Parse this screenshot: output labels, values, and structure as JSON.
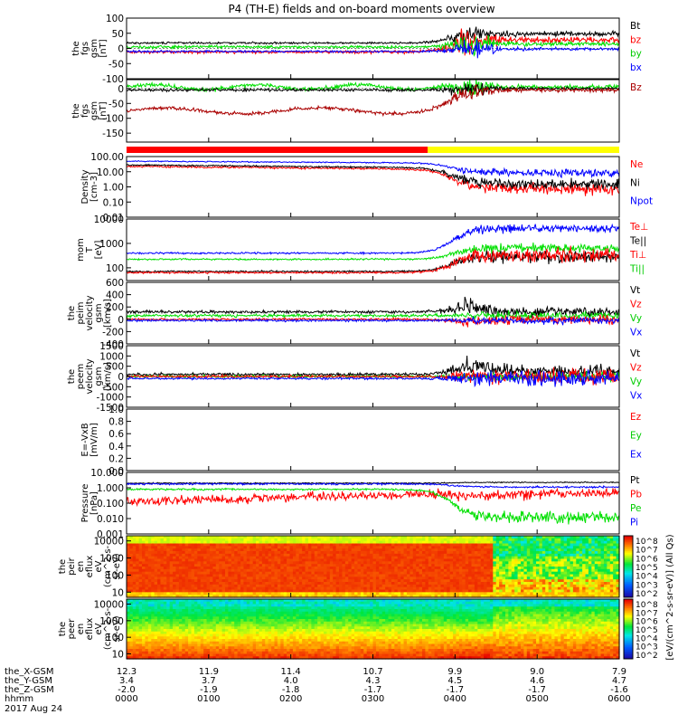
{
  "title": "P4 (TH-E) fields and on-board moments overview",
  "footer": {
    "rows": [
      {
        "label": "the_X-GSM",
        "values": [
          "12.3",
          "11.9",
          "11.4",
          "10.7",
          "9.9",
          "9.0",
          "7.9"
        ]
      },
      {
        "label": "the_Y-GSM",
        "values": [
          "3.4",
          "3.7",
          "4.0",
          "4.3",
          "4.5",
          "4.6",
          "4.7"
        ]
      },
      {
        "label": "the_Z-GSM",
        "values": [
          "-2.0",
          "-1.9",
          "-1.8",
          "-1.7",
          "-1.7",
          "-1.7",
          "-1.6"
        ]
      },
      {
        "label": "hhmm",
        "values": [
          "0000",
          "0100",
          "0200",
          "0300",
          "0400",
          "0500",
          "0600"
        ]
      }
    ],
    "date": "2017 Aug 24"
  },
  "colorbar": {
    "label": "[eV/(cm^2-s-sr-eV)] (All Qs)",
    "ticks_top": [
      "10^8",
      "10^7",
      "10^6",
      "10^5",
      "10^4",
      "10^3",
      "10^2"
    ],
    "ticks_bottom": [
      "10^8",
      "10^7",
      "10^6",
      "10^5",
      "10^4",
      "10^3",
      "10^2"
    ]
  },
  "colors": {
    "black": "#000000",
    "red": "#ff0000",
    "green": "#00e000",
    "blue": "#0000ff",
    "darkred": "#aa0000",
    "yellow": "#ffff00"
  },
  "chart_data": [
    {
      "type": "line",
      "id": "fgs",
      "ylabel": [
        "the",
        "fgs",
        "gsm",
        "[nT]"
      ],
      "ylim": [
        -100,
        100
      ],
      "ticks": [
        "100",
        "50",
        "0",
        "-50",
        "-100"
      ],
      "legend": [
        {
          "text": "Bt",
          "color": "#000000"
        },
        {
          "text": "bz",
          "color": "#ff0000"
        },
        {
          "text": "by",
          "color": "#00cc00"
        },
        {
          "text": "bx",
          "color": "#0000ff"
        }
      ]
    },
    {
      "type": "line",
      "id": "fgs-angles",
      "ylabel": [
        "the",
        "fgs",
        "gsm",
        "[nT]"
      ],
      "ylim": [
        -180,
        30
      ],
      "ticks": [
        "0",
        "-50",
        "-100",
        "-150"
      ],
      "legend": [
        {
          "text": "Bz",
          "color": "#aa0000"
        }
      ]
    },
    {
      "type": "bar",
      "id": "mode-bar",
      "segments": [
        {
          "from": "0000",
          "to": "0340",
          "color": "#ff0000"
        },
        {
          "from": "0340",
          "to": "0600",
          "color": "#ffff00"
        }
      ]
    },
    {
      "type": "line",
      "id": "density",
      "log": true,
      "ylabel": [
        "Density",
        "[cm-3]"
      ],
      "ylim": [
        0.01,
        100
      ],
      "ticks": [
        "100.00",
        "10.00",
        "1.00",
        "0.10",
        "0.01"
      ],
      "legend": [
        {
          "text": "Ne",
          "color": "#ff0000"
        },
        {
          "text": "Ni",
          "color": "#000000"
        },
        {
          "text": "Npot",
          "color": "#0000ff"
        }
      ]
    },
    {
      "type": "line",
      "id": "temperature",
      "log": true,
      "ylabel": [
        "mom",
        "T",
        "[eV]"
      ],
      "ylim": [
        30,
        10000
      ],
      "ticks": [
        "10000",
        "1000",
        "100"
      ],
      "legend": [
        {
          "text": "Te⊥",
          "color": "#ff0000"
        },
        {
          "text": "Te||",
          "color": "#000000"
        },
        {
          "text": "Ti⊥",
          "color": "#ff0000"
        },
        {
          "text": "Ti||",
          "color": "#00cc00"
        }
      ]
    },
    {
      "type": "line",
      "id": "peim-velocity",
      "ylabel": [
        "the",
        "peim",
        "velocity",
        "gsm",
        "[km/s]"
      ],
      "ylim": [
        -400,
        600
      ],
      "ticks": [
        "600",
        "400",
        "200",
        "0",
        "-200",
        "-400"
      ],
      "legend": [
        {
          "text": "Vt",
          "color": "#000000"
        },
        {
          "text": "Vz",
          "color": "#ff0000"
        },
        {
          "text": "Vy",
          "color": "#00cc00"
        },
        {
          "text": "Vx",
          "color": "#0000ff"
        }
      ]
    },
    {
      "type": "line",
      "id": "peem-velocity",
      "ylabel": [
        "the",
        "peem",
        "velocity",
        "gsm",
        "[km/s]"
      ],
      "ylim": [
        -1500,
        1500
      ],
      "ticks": [
        "1500",
        "1000",
        "500",
        "0",
        "-500",
        "-1000",
        "-1500"
      ],
      "legend": [
        {
          "text": "Vt",
          "color": "#000000"
        },
        {
          "text": "Vz",
          "color": "#ff0000"
        },
        {
          "text": "Vy",
          "color": "#00cc00"
        },
        {
          "text": "Vx",
          "color": "#0000ff"
        }
      ]
    },
    {
      "type": "line",
      "id": "efield",
      "ylabel": [
        "E=-VxB",
        "[mV/m]"
      ],
      "ylim": [
        0,
        1
      ],
      "ticks": [
        "1.0",
        "0.8",
        "0.6",
        "0.4",
        "0.2",
        "0.0"
      ],
      "legend": [
        {
          "text": "Ez",
          "color": "#ff0000"
        },
        {
          "text": "Ey",
          "color": "#00cc00"
        },
        {
          "text": "Ex",
          "color": "#0000ff"
        }
      ]
    },
    {
      "type": "line",
      "id": "pressure",
      "log": true,
      "ylabel": [
        "Pressure",
        "[nPa]"
      ],
      "ylim": [
        0.001,
        10
      ],
      "ticks": [
        "10.000",
        "1.000",
        "0.100",
        "0.010",
        "0.001"
      ],
      "legend": [
        {
          "text": "Pt",
          "color": "#000000"
        },
        {
          "text": "Pb",
          "color": "#ff0000"
        },
        {
          "text": "Pe",
          "color": "#00cc00"
        },
        {
          "text": "Pi",
          "color": "#0000ff"
        }
      ]
    },
    {
      "type": "heatmap",
      "id": "peir-eflux",
      "log": true,
      "ylabel": [
        "the",
        "peir",
        "en",
        "eflux",
        "eV",
        "(cm^2-s-",
        "sr-eV)"
      ],
      "ylim": [
        5,
        20000
      ],
      "ticks": [
        "10000",
        "1000",
        "100",
        "10"
      ]
    },
    {
      "type": "heatmap",
      "id": "peer-eflux",
      "log": true,
      "ylabel": [
        "the",
        "peer",
        "en",
        "eflux",
        "eV",
        "(cm^2-s-",
        "sr-eV)"
      ],
      "ylim": [
        5,
        20000
      ],
      "ticks": [
        "10000",
        "1000",
        "100",
        "10"
      ]
    }
  ]
}
